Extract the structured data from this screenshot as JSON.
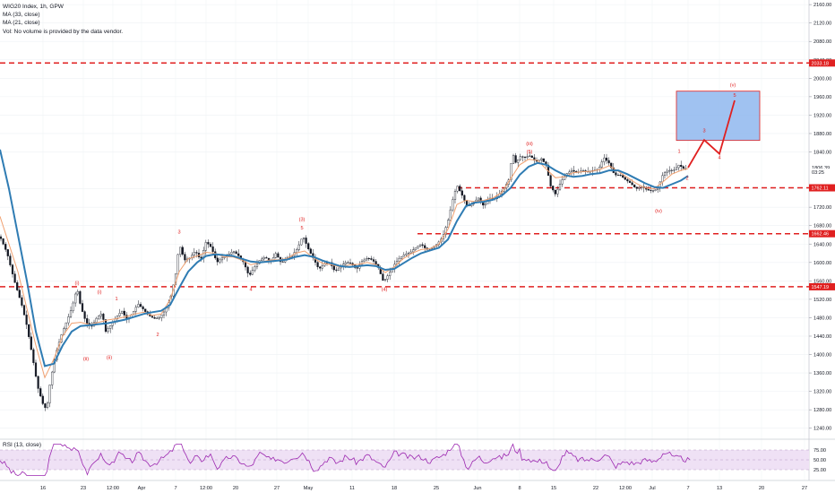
{
  "header": {
    "symbol": "WIG20 Index, 1h, GPW",
    "ma1_label": "MA (33, close)",
    "ma2_label": "MA (21, close)",
    "volume_note": "Vol: No volume is provided by the data vendor."
  },
  "rsi": {
    "label": "RSI (13, close)",
    "levels": [
      "75.00",
      "50.00",
      "25.00"
    ],
    "ylim": [
      0,
      100
    ]
  },
  "colors": {
    "price": "#131722",
    "ma33": "#2f7cb3",
    "ma21": "#f0a070",
    "levels": "#e02020",
    "target_fill": "#8fb7ef",
    "target_stroke": "#e02020",
    "rsi_line": "#9c27b0",
    "rsi_band": "#efe1f5"
  },
  "chart_data": {
    "type": "line",
    "title": "WIG20 Index, 1h, GPW",
    "ylim": [
      1220,
      2170
    ],
    "y_ticks": [
      2160,
      2120,
      2080,
      2040,
      2000,
      1960,
      1920,
      1880,
      1840,
      1760,
      1720,
      1680,
      1640,
      1600,
      1560,
      1520,
      1480,
      1440,
      1400,
      1360,
      1320,
      1280,
      1240
    ],
    "x_ticks": [
      "16",
      "23",
      "12:00",
      "Apr",
      "7",
      "12:00",
      "20",
      "27",
      "May",
      "11",
      "18",
      "25",
      "Jun",
      "8",
      "15",
      "22",
      "12:00",
      "Jul",
      "7",
      "13",
      "20",
      "27"
    ],
    "price_path": [
      [
        0,
        1656
      ],
      [
        8,
        1620
      ],
      [
        16,
        1560
      ],
      [
        24,
        1510
      ],
      [
        30,
        1462
      ],
      [
        36,
        1398
      ],
      [
        42,
        1330
      ],
      [
        48,
        1292
      ],
      [
        52,
        1280
      ],
      [
        56,
        1340
      ],
      [
        62,
        1400
      ],
      [
        68,
        1440
      ],
      [
        74,
        1470
      ],
      [
        80,
        1500
      ],
      [
        86,
        1545
      ],
      [
        90,
        1505
      ],
      [
        96,
        1470
      ],
      [
        102,
        1460
      ],
      [
        108,
        1480
      ],
      [
        114,
        1490
      ],
      [
        118,
        1450
      ],
      [
        124,
        1465
      ],
      [
        130,
        1482
      ],
      [
        136,
        1495
      ],
      [
        142,
        1475
      ],
      [
        148,
        1490
      ],
      [
        154,
        1510
      ],
      [
        160,
        1498
      ],
      [
        166,
        1485
      ],
      [
        172,
        1478
      ],
      [
        178,
        1480
      ],
      [
        184,
        1495
      ],
      [
        190,
        1520
      ],
      [
        196,
        1575
      ],
      [
        200,
        1640
      ],
      [
        206,
        1605
      ],
      [
        212,
        1610
      ],
      [
        218,
        1625
      ],
      [
        224,
        1605
      ],
      [
        230,
        1645
      ],
      [
        236,
        1632
      ],
      [
        242,
        1600
      ],
      [
        248,
        1610
      ],
      [
        254,
        1615
      ],
      [
        260,
        1625
      ],
      [
        266,
        1615
      ],
      [
        272,
        1600
      ],
      [
        278,
        1570
      ],
      [
        284,
        1590
      ],
      [
        290,
        1605
      ],
      [
        296,
        1612
      ],
      [
        302,
        1600
      ],
      [
        308,
        1620
      ],
      [
        314,
        1598
      ],
      [
        320,
        1610
      ],
      [
        326,
        1615
      ],
      [
        332,
        1630
      ],
      [
        338,
        1658
      ],
      [
        344,
        1630
      ],
      [
        350,
        1608
      ],
      [
        356,
        1585
      ],
      [
        362,
        1598
      ],
      [
        368,
        1600
      ],
      [
        374,
        1580
      ],
      [
        380,
        1592
      ],
      [
        386,
        1600
      ],
      [
        392,
        1598
      ],
      [
        398,
        1585
      ],
      [
        404,
        1602
      ],
      [
        410,
        1610
      ],
      [
        416,
        1605
      ],
      [
        422,
        1590
      ],
      [
        428,
        1558
      ],
      [
        434,
        1575
      ],
      [
        440,
        1595
      ],
      [
        446,
        1610
      ],
      [
        452,
        1618
      ],
      [
        458,
        1622
      ],
      [
        464,
        1632
      ],
      [
        470,
        1640
      ],
      [
        476,
        1628
      ],
      [
        482,
        1632
      ],
      [
        488,
        1640
      ],
      [
        494,
        1655
      ],
      [
        500,
        1690
      ],
      [
        506,
        1742
      ],
      [
        510,
        1768
      ],
      [
        516,
        1745
      ],
      [
        522,
        1720
      ],
      [
        528,
        1730
      ],
      [
        534,
        1740
      ],
      [
        540,
        1722
      ],
      [
        546,
        1740
      ],
      [
        552,
        1738
      ],
      [
        558,
        1750
      ],
      [
        564,
        1765
      ],
      [
        568,
        1780
      ],
      [
        572,
        1838
      ],
      [
        576,
        1815
      ],
      [
        580,
        1830
      ],
      [
        586,
        1828
      ],
      [
        592,
        1832
      ],
      [
        598,
        1818
      ],
      [
        604,
        1826
      ],
      [
        610,
        1810
      ],
      [
        614,
        1768
      ],
      [
        620,
        1748
      ],
      [
        626,
        1775
      ],
      [
        632,
        1792
      ],
      [
        638,
        1800
      ],
      [
        644,
        1795
      ],
      [
        650,
        1800
      ],
      [
        656,
        1796
      ],
      [
        662,
        1800
      ],
      [
        668,
        1802
      ],
      [
        674,
        1828
      ],
      [
        680,
        1815
      ],
      [
        686,
        1790
      ],
      [
        692,
        1790
      ],
      [
        698,
        1780
      ],
      [
        704,
        1772
      ],
      [
        710,
        1760
      ],
      [
        716,
        1765
      ],
      [
        722,
        1758
      ],
      [
        728,
        1755
      ],
      [
        734,
        1760
      ],
      [
        740,
        1792
      ],
      [
        746,
        1800
      ],
      [
        752,
        1800
      ],
      [
        758,
        1812
      ],
      [
        764,
        1802
      ],
      [
        768,
        1806
      ]
    ],
    "ma33_path": [
      [
        0,
        1845
      ],
      [
        10,
        1760
      ],
      [
        20,
        1660
      ],
      [
        30,
        1560
      ],
      [
        40,
        1450
      ],
      [
        50,
        1375
      ],
      [
        60,
        1380
      ],
      [
        70,
        1420
      ],
      [
        80,
        1450
      ],
      [
        90,
        1462
      ],
      [
        100,
        1464
      ],
      [
        110,
        1466
      ],
      [
        120,
        1468
      ],
      [
        130,
        1472
      ],
      [
        140,
        1476
      ],
      [
        150,
        1482
      ],
      [
        160,
        1488
      ],
      [
        170,
        1492
      ],
      [
        180,
        1495
      ],
      [
        190,
        1508
      ],
      [
        200,
        1545
      ],
      [
        210,
        1580
      ],
      [
        220,
        1600
      ],
      [
        230,
        1614
      ],
      [
        240,
        1618
      ],
      [
        250,
        1616
      ],
      [
        260,
        1614
      ],
      [
        270,
        1608
      ],
      [
        280,
        1602
      ],
      [
        290,
        1600
      ],
      [
        300,
        1602
      ],
      [
        310,
        1604
      ],
      [
        320,
        1606
      ],
      [
        330,
        1612
      ],
      [
        340,
        1616
      ],
      [
        350,
        1612
      ],
      [
        360,
        1604
      ],
      [
        370,
        1598
      ],
      [
        380,
        1592
      ],
      [
        390,
        1590
      ],
      [
        400,
        1592
      ],
      [
        410,
        1594
      ],
      [
        420,
        1592
      ],
      [
        430,
        1584
      ],
      [
        440,
        1586
      ],
      [
        450,
        1598
      ],
      [
        460,
        1610
      ],
      [
        470,
        1620
      ],
      [
        480,
        1626
      ],
      [
        490,
        1632
      ],
      [
        500,
        1650
      ],
      [
        510,
        1690
      ],
      [
        520,
        1722
      ],
      [
        530,
        1730
      ],
      [
        540,
        1732
      ],
      [
        550,
        1736
      ],
      [
        560,
        1745
      ],
      [
        570,
        1762
      ],
      [
        580,
        1790
      ],
      [
        590,
        1808
      ],
      [
        600,
        1816
      ],
      [
        610,
        1812
      ],
      [
        620,
        1800
      ],
      [
        630,
        1790
      ],
      [
        640,
        1786
      ],
      [
        650,
        1788
      ],
      [
        660,
        1792
      ],
      [
        670,
        1794
      ],
      [
        680,
        1800
      ],
      [
        690,
        1800
      ],
      [
        700,
        1792
      ],
      [
        710,
        1782
      ],
      [
        720,
        1772
      ],
      [
        730,
        1764
      ],
      [
        740,
        1762
      ],
      [
        750,
        1770
      ],
      [
        760,
        1778
      ],
      [
        768,
        1788
      ]
    ],
    "ma21_path": [
      [
        0,
        1700
      ],
      [
        10,
        1640
      ],
      [
        20,
        1580
      ],
      [
        30,
        1500
      ],
      [
        40,
        1420
      ],
      [
        50,
        1350
      ],
      [
        60,
        1390
      ],
      [
        70,
        1440
      ],
      [
        80,
        1468
      ],
      [
        90,
        1470
      ],
      [
        100,
        1465
      ],
      [
        110,
        1470
      ],
      [
        120,
        1475
      ],
      [
        130,
        1478
      ],
      [
        140,
        1482
      ],
      [
        150,
        1488
      ],
      [
        160,
        1492
      ],
      [
        170,
        1485
      ],
      [
        180,
        1488
      ],
      [
        190,
        1520
      ],
      [
        200,
        1580
      ],
      [
        210,
        1608
      ],
      [
        220,
        1614
      ],
      [
        230,
        1622
      ],
      [
        240,
        1620
      ],
      [
        250,
        1612
      ],
      [
        260,
        1612
      ],
      [
        270,
        1605
      ],
      [
        280,
        1595
      ],
      [
        290,
        1600
      ],
      [
        300,
        1605
      ],
      [
        310,
        1606
      ],
      [
        320,
        1608
      ],
      [
        330,
        1620
      ],
      [
        340,
        1625
      ],
      [
        350,
        1610
      ],
      [
        360,
        1598
      ],
      [
        370,
        1595
      ],
      [
        380,
        1590
      ],
      [
        390,
        1595
      ],
      [
        400,
        1596
      ],
      [
        410,
        1600
      ],
      [
        420,
        1595
      ],
      [
        430,
        1578
      ],
      [
        440,
        1590
      ],
      [
        450,
        1608
      ],
      [
        460,
        1620
      ],
      [
        470,
        1628
      ],
      [
        480,
        1630
      ],
      [
        490,
        1640
      ],
      [
        500,
        1672
      ],
      [
        510,
        1726
      ],
      [
        520,
        1735
      ],
      [
        530,
        1732
      ],
      [
        540,
        1735
      ],
      [
        550,
        1740
      ],
      [
        560,
        1752
      ],
      [
        570,
        1782
      ],
      [
        580,
        1812
      ],
      [
        590,
        1824
      ],
      [
        600,
        1822
      ],
      [
        610,
        1802
      ],
      [
        620,
        1784
      ],
      [
        630,
        1786
      ],
      [
        640,
        1795
      ],
      [
        650,
        1797
      ],
      [
        660,
        1798
      ],
      [
        670,
        1802
      ],
      [
        680,
        1810
      ],
      [
        690,
        1798
      ],
      [
        700,
        1785
      ],
      [
        710,
        1772
      ],
      [
        720,
        1762
      ],
      [
        730,
        1760
      ],
      [
        740,
        1775
      ],
      [
        750,
        1792
      ],
      [
        760,
        1800
      ],
      [
        768,
        1804
      ]
    ],
    "projection_path": [
      [
        768,
        1806
      ],
      [
        786,
        1866
      ],
      [
        803,
        1836
      ],
      [
        820,
        1952
      ]
    ],
    "target_zone": {
      "x_range": [
        755,
        848
      ],
      "y_range": [
        1865,
        1972
      ]
    },
    "horizontal_levels": [
      {
        "value": 2033.18,
        "label": "2033.18",
        "x_start": 0
      },
      {
        "value": 1762.11,
        "label": "1762.11",
        "x_start": 510
      },
      {
        "value": 1662.46,
        "label": "1662.46",
        "x_start": 466
      },
      {
        "value": 1547.19,
        "label": "1547.19",
        "x_start": 0
      }
    ],
    "price_tags": [
      {
        "value": 1806.39,
        "label": "1806.39"
      },
      {
        "value": 1796,
        "label": "03:25"
      }
    ],
    "wave_labels": [
      {
        "text": "(i)",
        "x": 86,
        "y": 1552
      },
      {
        "text": "(ii)",
        "x": 96,
        "y": 1387
      },
      {
        "text": "(i)",
        "x": 111,
        "y": 1532
      },
      {
        "text": "(ii)",
        "x": 122,
        "y": 1390
      },
      {
        "text": "1",
        "x": 130,
        "y": 1518
      },
      {
        "text": "2",
        "x": 176,
        "y": 1440
      },
      {
        "text": "3",
        "x": 200,
        "y": 1663
      },
      {
        "text": "4",
        "x": 280,
        "y": 1538
      },
      {
        "text": "(3)",
        "x": 337,
        "y": 1690
      },
      {
        "text": "5",
        "x": 337,
        "y": 1672
      },
      {
        "text": "(4)",
        "x": 429,
        "y": 1538
      },
      {
        "text": "(iii)",
        "x": 591,
        "y": 1855
      },
      {
        "text": "(5)",
        "x": 591,
        "y": 1837
      },
      {
        "text": "(iv)",
        "x": 735,
        "y": 1709
      },
      {
        "text": "1",
        "x": 758,
        "y": 1838
      },
      {
        "text": "2",
        "x": 767,
        "y": 1780
      },
      {
        "text": "3",
        "x": 786,
        "y": 1883
      },
      {
        "text": "4",
        "x": 803,
        "y": 1824
      },
      {
        "text": "5",
        "x": 820,
        "y": 1960
      },
      {
        "text": "(v)",
        "x": 818,
        "y": 1982
      }
    ]
  }
}
